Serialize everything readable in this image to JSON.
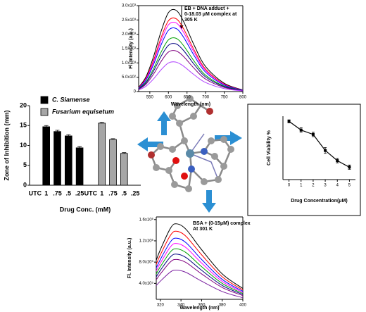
{
  "chart_data": [
    {
      "type": "line",
      "xlabel": "Wavelength (nm)",
      "ylabel": "Fl. Intensity (a.u.)",
      "annotation": [
        "EB + DNA adduct +",
        "0-18.03 μM complex at",
        "305 K"
      ],
      "x": [
        520,
        540,
        560,
        580,
        600,
        620,
        640,
        670,
        700,
        750,
        800
      ],
      "xlim": [
        520,
        800
      ],
      "xticks": [
        550,
        600,
        650,
        700,
        750,
        800
      ],
      "ylim": [
        0,
        3000
      ],
      "yticks": [
        0,
        {
          "value": 500,
          "label": "5.0x10²"
        },
        {
          "value": 1000,
          "label": "1.0x10³"
        },
        {
          "value": 1500,
          "label": "1.5x10³"
        },
        {
          "value": 2000,
          "label": "2.0x10³"
        },
        {
          "value": 2500,
          "label": "2.5x10³"
        },
        {
          "value": 3000,
          "label": "3.0x10³"
        }
      ],
      "series": [
        {
          "color": "#000000",
          "values": [
            145,
            522,
            1218,
            2088,
            2755,
            2842,
            2465,
            1595,
            870,
            290,
            58
          ]
        },
        {
          "color": "#ff0000",
          "values": [
            130,
            468,
            1092,
            1872,
            2470,
            2548,
            2210,
            1430,
            780,
            260,
            52
          ]
        },
        {
          "color": "#ff00ff",
          "values": [
            123,
            441,
            1029,
            1764,
            2328,
            2401,
            2083,
            1348,
            735,
            245,
            49
          ]
        },
        {
          "color": "#0000ff",
          "values": [
            113,
            405,
            945,
            1620,
            2138,
            2205,
            1913,
            1238,
            675,
            225,
            45
          ]
        },
        {
          "color": "#00a000",
          "values": [
            95,
            342,
            798,
            1368,
            1805,
            1862,
            1615,
            1045,
            570,
            190,
            38
          ]
        },
        {
          "color": "#000080",
          "values": [
            85,
            306,
            714,
            1224,
            1615,
            1666,
            1445,
            935,
            510,
            170,
            34
          ]
        },
        {
          "color": "#800080",
          "values": [
            73,
            261,
            609,
            1044,
            1378,
            1421,
            1233,
            798,
            435,
            145,
            29
          ]
        },
        {
          "color": "#b040ff",
          "values": [
            53,
            189,
            441,
            756,
            998,
            1029,
            893,
            578,
            315,
            105,
            21
          ]
        }
      ]
    },
    {
      "type": "bar",
      "xlabel": "Drug Conc. (mM)",
      "ylabel": "Zone of Inhibition (mm)",
      "categories": [
        "UTC",
        "1",
        ".75",
        ".5",
        ".25",
        "UTC",
        "1",
        ".75",
        ".5",
        ".25"
      ],
      "ylim": [
        0,
        20
      ],
      "yticks": [
        0,
        5,
        10,
        15,
        20
      ],
      "series": [
        {
          "name": "C. Siamense",
          "color": "#000000",
          "values": [
            null,
            14.7,
            13.5,
            12.4,
            9.4,
            null,
            null,
            null,
            null,
            null
          ],
          "errors": [
            null,
            0.3,
            0.3,
            0.3,
            0.3,
            null,
            null,
            null,
            null,
            null
          ]
        },
        {
          "name": "Fusarium equisetum",
          "color": "#a6a6a6",
          "values": [
            null,
            null,
            null,
            null,
            null,
            null,
            15.6,
            11.5,
            8.0,
            null
          ],
          "errors": [
            null,
            null,
            null,
            null,
            null,
            null,
            0.2,
            0.2,
            0.2,
            null
          ]
        }
      ]
    },
    {
      "type": "line",
      "xlabel": "Drug Concentration(μM)",
      "ylabel": "Cell Viability %",
      "markers": true,
      "x": [
        0,
        1,
        2,
        3,
        4,
        5
      ],
      "xlim": [
        -0.5,
        5.5
      ],
      "xticks": [
        0,
        1,
        2,
        3,
        4,
        5
      ],
      "ylim": [
        20,
        107
      ],
      "series": [
        {
          "color": "#000000",
          "values": [
            100,
            88,
            82,
            60,
            46,
            37
          ],
          "errors": [
            2,
            3,
            3,
            4,
            3,
            3
          ]
        }
      ]
    },
    {
      "type": "line",
      "xlabel": "Wavelength (nm)",
      "ylabel": "Fl. Intensity (a.u.)",
      "annotation": [
        "BSA + (0-15μM) complex",
        "At 301 K"
      ],
      "x": [
        316,
        320,
        330,
        336,
        345,
        360,
        380,
        400
      ],
      "xlim": [
        316,
        400
      ],
      "xticks": [
        320,
        340,
        360,
        380,
        400
      ],
      "ylim": [
        100000,
        1650000
      ],
      "yticks": [
        {
          "value": 400000,
          "label": "4.0x10⁵"
        },
        {
          "value": 800000,
          "label": "8.0x10⁵"
        },
        {
          "value": 1200000,
          "label": "1.2x10⁶"
        },
        {
          "value": 1600000,
          "label": "1.6x10⁶"
        }
      ],
      "series": [
        {
          "color": "#000000",
          "values": [
            836000,
            1034000,
            1444000,
            1520000,
            1414000,
            1034000,
            578000,
            304000
          ]
        },
        {
          "color": "#ff0000",
          "values": [
            759000,
            938000,
            1311000,
            1380000,
            1283000,
            938000,
            524000,
            276000
          ]
        },
        {
          "color": "#0000ff",
          "values": [
            688000,
            850000,
            1188000,
            1250000,
            1163000,
            850000,
            475000,
            250000
          ]
        },
        {
          "color": "#ff00ff",
          "values": [
            633000,
            782000,
            1093000,
            1150000,
            1070000,
            782000,
            437000,
            230000
          ]
        },
        {
          "color": "#00a000",
          "values": [
            578000,
            714000,
            998000,
            1050000,
            977000,
            714000,
            399000,
            210000
          ]
        },
        {
          "color": "#000080",
          "values": [
            523000,
            646000,
            903000,
            950000,
            884000,
            646000,
            361000,
            190000
          ]
        },
        {
          "color": "#800080",
          "values": [
            468000,
            578000,
            808000,
            850000,
            791000,
            578000,
            323000,
            170000
          ]
        },
        {
          "color": "#7a1fa0",
          "values": [
            358000,
            442000,
            618000,
            650000,
            605000,
            442000,
            247000,
            130000
          ]
        }
      ]
    }
  ]
}
